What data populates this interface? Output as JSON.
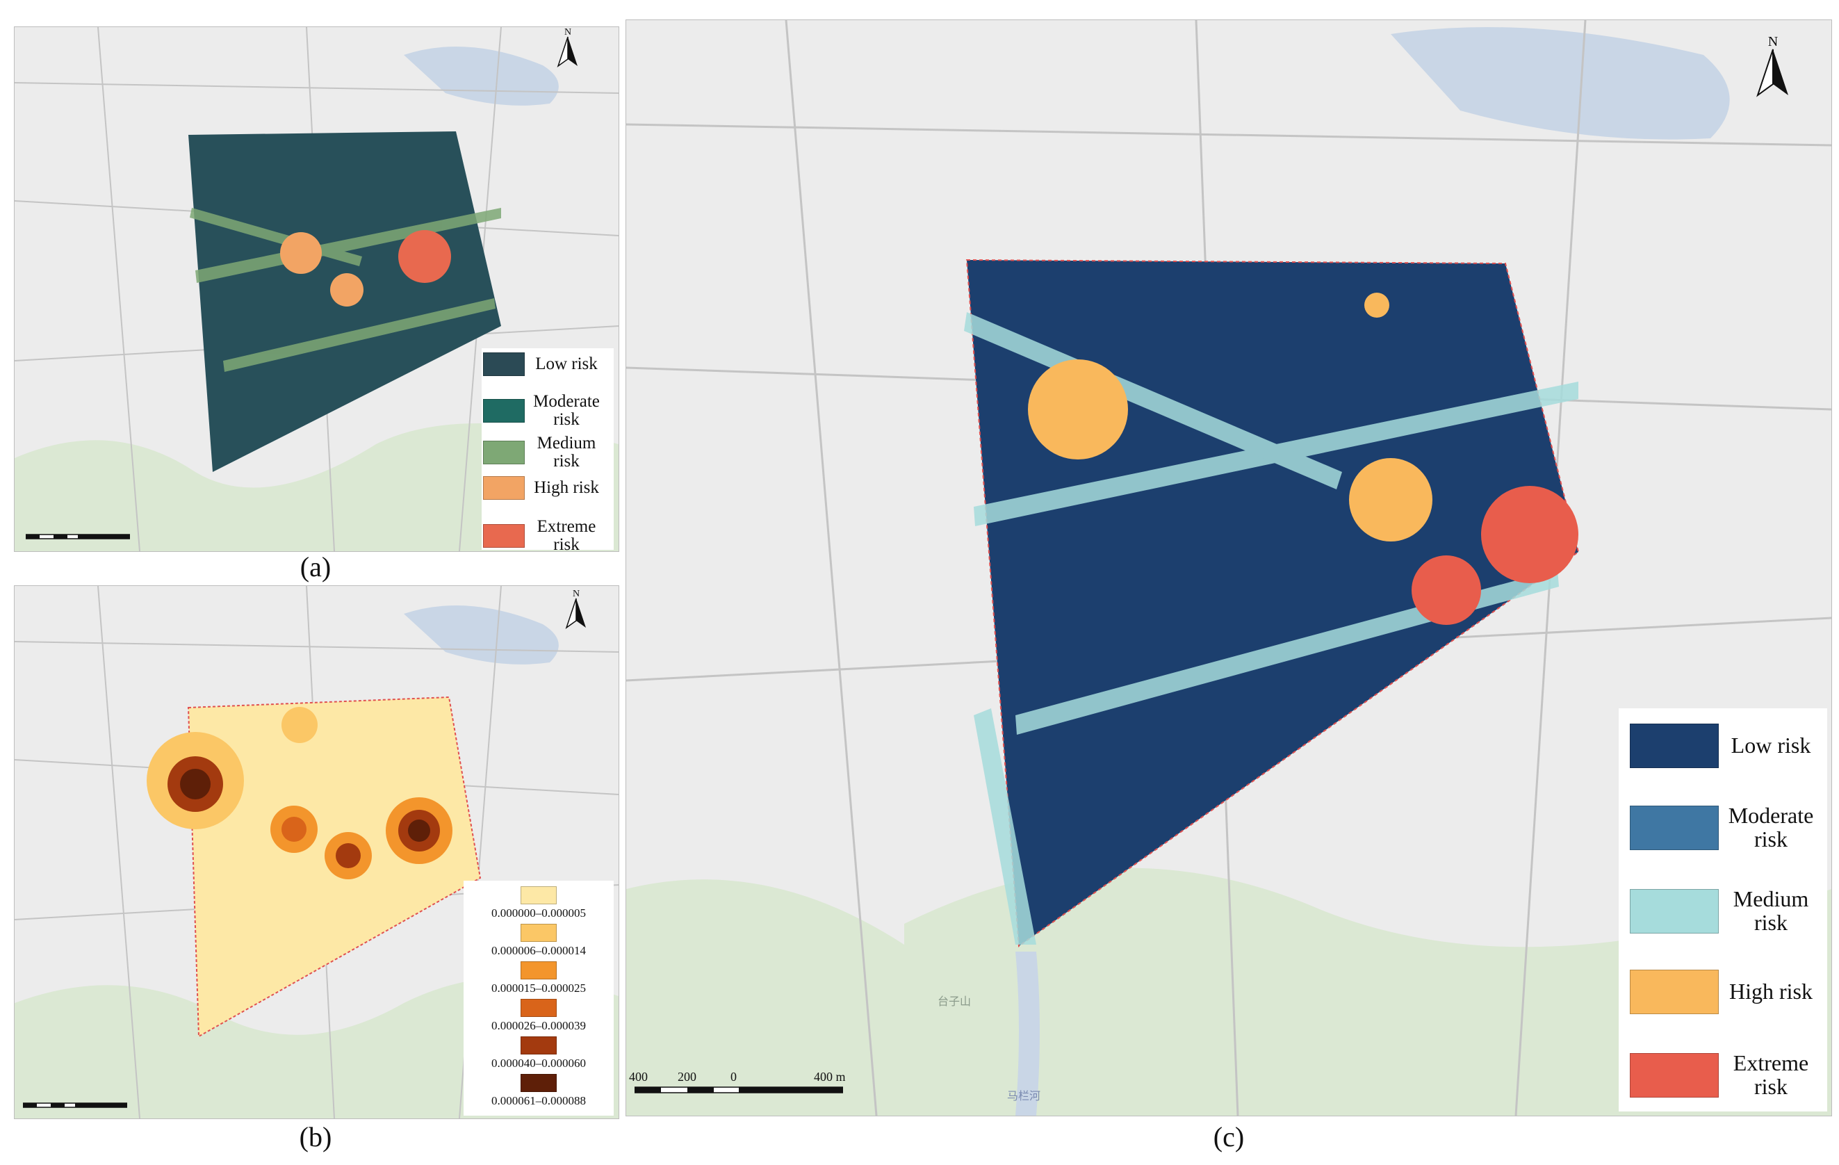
{
  "panels": {
    "a": {
      "caption": "(a)",
      "legend": [
        {
          "label": "Low risk",
          "color": "#2b4a55"
        },
        {
          "label": "Moderate risk",
          "color": "#1f6b63"
        },
        {
          "label": "Medium risk",
          "color": "#7ea875"
        },
        {
          "label": "High risk",
          "color": "#f2a464"
        },
        {
          "label": "Extreme risk",
          "color": "#e8694f"
        }
      ]
    },
    "b": {
      "caption": "(b)",
      "legend": [
        {
          "label": "0.000000–0.000005",
          "color": "#fde8a6"
        },
        {
          "label": "0.000006–0.000014",
          "color": "#fbc766"
        },
        {
          "label": "0.000015–0.000025",
          "color": "#f3952c"
        },
        {
          "label": "0.000026–0.000039",
          "color": "#d9641a"
        },
        {
          "label": "0.000040–0.000060",
          "color": "#a33a0f"
        },
        {
          "label": "0.000061–0.000088",
          "color": "#5e1f08"
        }
      ]
    },
    "c": {
      "caption": "(c)",
      "legend": [
        {
          "label": "Low risk",
          "color": "#1c3f6e"
        },
        {
          "label": "Moderate risk",
          "color": "#3f77a3"
        },
        {
          "label": "Medium risk",
          "color": "#a6dcdc"
        },
        {
          "label": "High risk",
          "color": "#f9b85c"
        },
        {
          "label": "Extreme risk",
          "color": "#e85d4c"
        }
      ],
      "scale_labels": [
        "400",
        "200",
        "0",
        "400 m"
      ]
    }
  },
  "north_label": "N",
  "map_labels": {
    "hill": "台子山",
    "river": "马栏河"
  }
}
